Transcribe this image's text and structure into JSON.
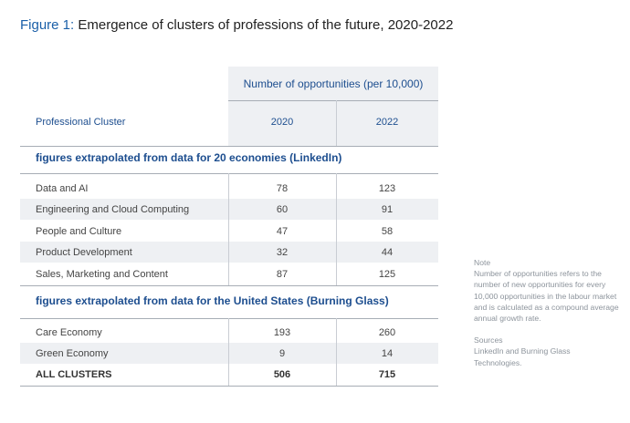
{
  "figure": {
    "label": "Figure 1:",
    "title": "Emergence of clusters of professions of the future, 2020-2022"
  },
  "table": {
    "group_header": "Number of opportunities (per 10,000)",
    "col_cluster": "Professional Cluster",
    "col_2020": "2020",
    "col_2022": "2022",
    "sections": [
      {
        "title": "figures extrapolated from data for 20 economies (LinkedIn)",
        "rows": [
          {
            "name": "Data and AI",
            "v2020": "78",
            "v2022": "123"
          },
          {
            "name": "Engineering and Cloud Computing",
            "v2020": "60",
            "v2022": "91"
          },
          {
            "name": "People and Culture",
            "v2020": "47",
            "v2022": "58"
          },
          {
            "name": "Product Development",
            "v2020": "32",
            "v2022": "44"
          },
          {
            "name": "Sales, Marketing and Content",
            "v2020": "87",
            "v2022": "125"
          }
        ]
      },
      {
        "title": "figures extrapolated from data for the United States (Burning Glass)",
        "rows": [
          {
            "name": "Care Economy",
            "v2020": "193",
            "v2022": "260"
          },
          {
            "name": "Green Economy",
            "v2020": "9",
            "v2022": "14"
          }
        ]
      }
    ],
    "total": {
      "name": "ALL CLUSTERS",
      "v2020": "506",
      "v2022": "715"
    }
  },
  "note": {
    "heading": "Note",
    "text": "Number of opportunities refers to the number of new opportunities for every 10,000 opportunities in the labour market and is calculated as a compound average annual growth rate.",
    "sources_heading": "Sources",
    "sources_text": "LinkedIn and Burning Glass Technologies."
  },
  "colors": {
    "accent": "#1d4e8f",
    "figure_label": "#1a5fa8",
    "row_shade": "#eef0f3"
  }
}
